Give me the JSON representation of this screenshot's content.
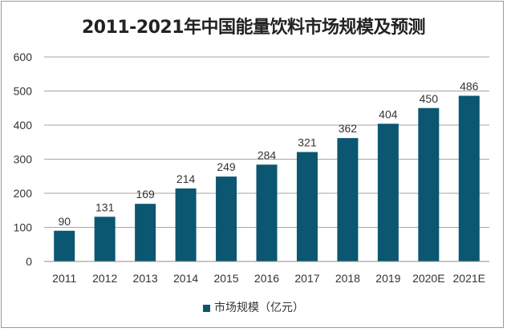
{
  "chart_data": {
    "type": "bar",
    "title": "2011-2021年中国能量饮料市场规模及预测",
    "categories": [
      "2011",
      "2012",
      "2013",
      "2014",
      "2015",
      "2016",
      "2017",
      "2018",
      "2019",
      "2020E",
      "2021E"
    ],
    "series": [
      {
        "name": "市场规模（亿元）",
        "values": [
          90,
          131,
          169,
          214,
          249,
          284,
          321,
          362,
          404,
          450,
          486
        ],
        "color": "#0b5670"
      }
    ],
    "ylim": [
      0,
      600
    ],
    "yticks": [
      0,
      100,
      200,
      300,
      400,
      500,
      600
    ],
    "grid": true,
    "legend": "bottom",
    "xlabel": "",
    "ylabel": ""
  }
}
